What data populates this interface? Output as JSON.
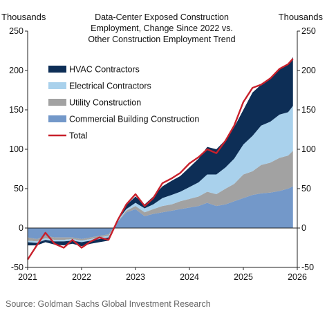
{
  "chart_data": {
    "type": "area",
    "title_lines": [
      "Data-Center  Exposed Construction",
      "Employment, Change Since 2022 vs.",
      "Other Construction Employment Trend"
    ],
    "left_unit_label": "Thousands",
    "right_unit_label": "Thousands",
    "source": "Source: Goldman Sachs Global Investment Research",
    "ylim": [
      -50,
      250
    ],
    "yticks": [
      -50,
      0,
      50,
      100,
      150,
      200,
      250
    ],
    "xlim": [
      2021,
      2026
    ],
    "xticks": [
      "2021",
      "2022",
      "2023",
      "2024",
      "2025",
      "2026"
    ],
    "grid": false,
    "legend_position": "top-left",
    "colors": {
      "hvac": "#0d2e56",
      "electrical": "#a9d1ec",
      "utility": "#a2a2a2",
      "commercial": "#7398c9",
      "total": "#c8202b"
    },
    "x": [
      2021.0,
      2021.17,
      2021.33,
      2021.5,
      2021.67,
      2021.83,
      2022.0,
      2022.17,
      2022.33,
      2022.5,
      2022.67,
      2022.83,
      2023.0,
      2023.17,
      2023.33,
      2023.5,
      2023.67,
      2023.83,
      2024.0,
      2024.17,
      2024.33,
      2024.5,
      2024.67,
      2024.83,
      2025.0,
      2025.17,
      2025.33,
      2025.5,
      2025.67,
      2025.83,
      2025.92
    ],
    "series": [
      {
        "name": "Commercial Building Construction",
        "key": "commercial",
        "values": [
          -12,
          -14,
          -10,
          -12,
          -12,
          -12,
          -14,
          -12,
          -10,
          -8,
          8,
          20,
          24,
          15,
          18,
          20,
          22,
          24,
          26,
          28,
          32,
          28,
          30,
          34,
          38,
          42,
          44,
          45,
          47,
          50,
          53
        ]
      },
      {
        "name": "Utility Construction",
        "key": "utility",
        "values": [
          -4,
          -3,
          -3,
          -3,
          -3,
          -2,
          -2,
          -2,
          -2,
          -2,
          0,
          2,
          4,
          5,
          6,
          8,
          8,
          10,
          11,
          12,
          14,
          15,
          20,
          22,
          30,
          30,
          36,
          38,
          42,
          42,
          45
        ]
      },
      {
        "name": "Electrical Contractors",
        "key": "electrical",
        "values": [
          -2,
          -2,
          -2,
          -2,
          -2,
          -2,
          -2,
          -2,
          -2,
          -2,
          2,
          2,
          4,
          5,
          6,
          10,
          12,
          12,
          15,
          18,
          22,
          25,
          27,
          32,
          38,
          45,
          50,
          52,
          55,
          55,
          57
        ]
      },
      {
        "name": "HVAC Contractors",
        "key": "hvac",
        "values": [
          -4,
          -3,
          -3,
          -4,
          -5,
          -4,
          -5,
          -4,
          -4,
          -4,
          2,
          5,
          8,
          5,
          10,
          15,
          18,
          20,
          25,
          30,
          35,
          32,
          35,
          40,
          44,
          55,
          52,
          55,
          58,
          60,
          62
        ]
      }
    ],
    "total": {
      "name": "Total",
      "values": [
        -40,
        -22,
        -6,
        -20,
        -25,
        -15,
        -25,
        -17,
        -12,
        -15,
        10,
        30,
        43,
        28,
        38,
        57,
        63,
        70,
        82,
        90,
        100,
        95,
        111,
        130,
        160,
        178,
        182,
        190,
        202,
        208,
        215
      ]
    },
    "legend": [
      {
        "label": "HVAC Contractors",
        "key": "hvac",
        "kind": "area"
      },
      {
        "label": "Electrical Contractors",
        "key": "electrical",
        "kind": "area"
      },
      {
        "label": "Utility Construction",
        "key": "utility",
        "kind": "area"
      },
      {
        "label": "Commercial Building Construction",
        "key": "commercial",
        "kind": "area"
      },
      {
        "label": "Total",
        "key": "total",
        "kind": "line"
      }
    ]
  }
}
